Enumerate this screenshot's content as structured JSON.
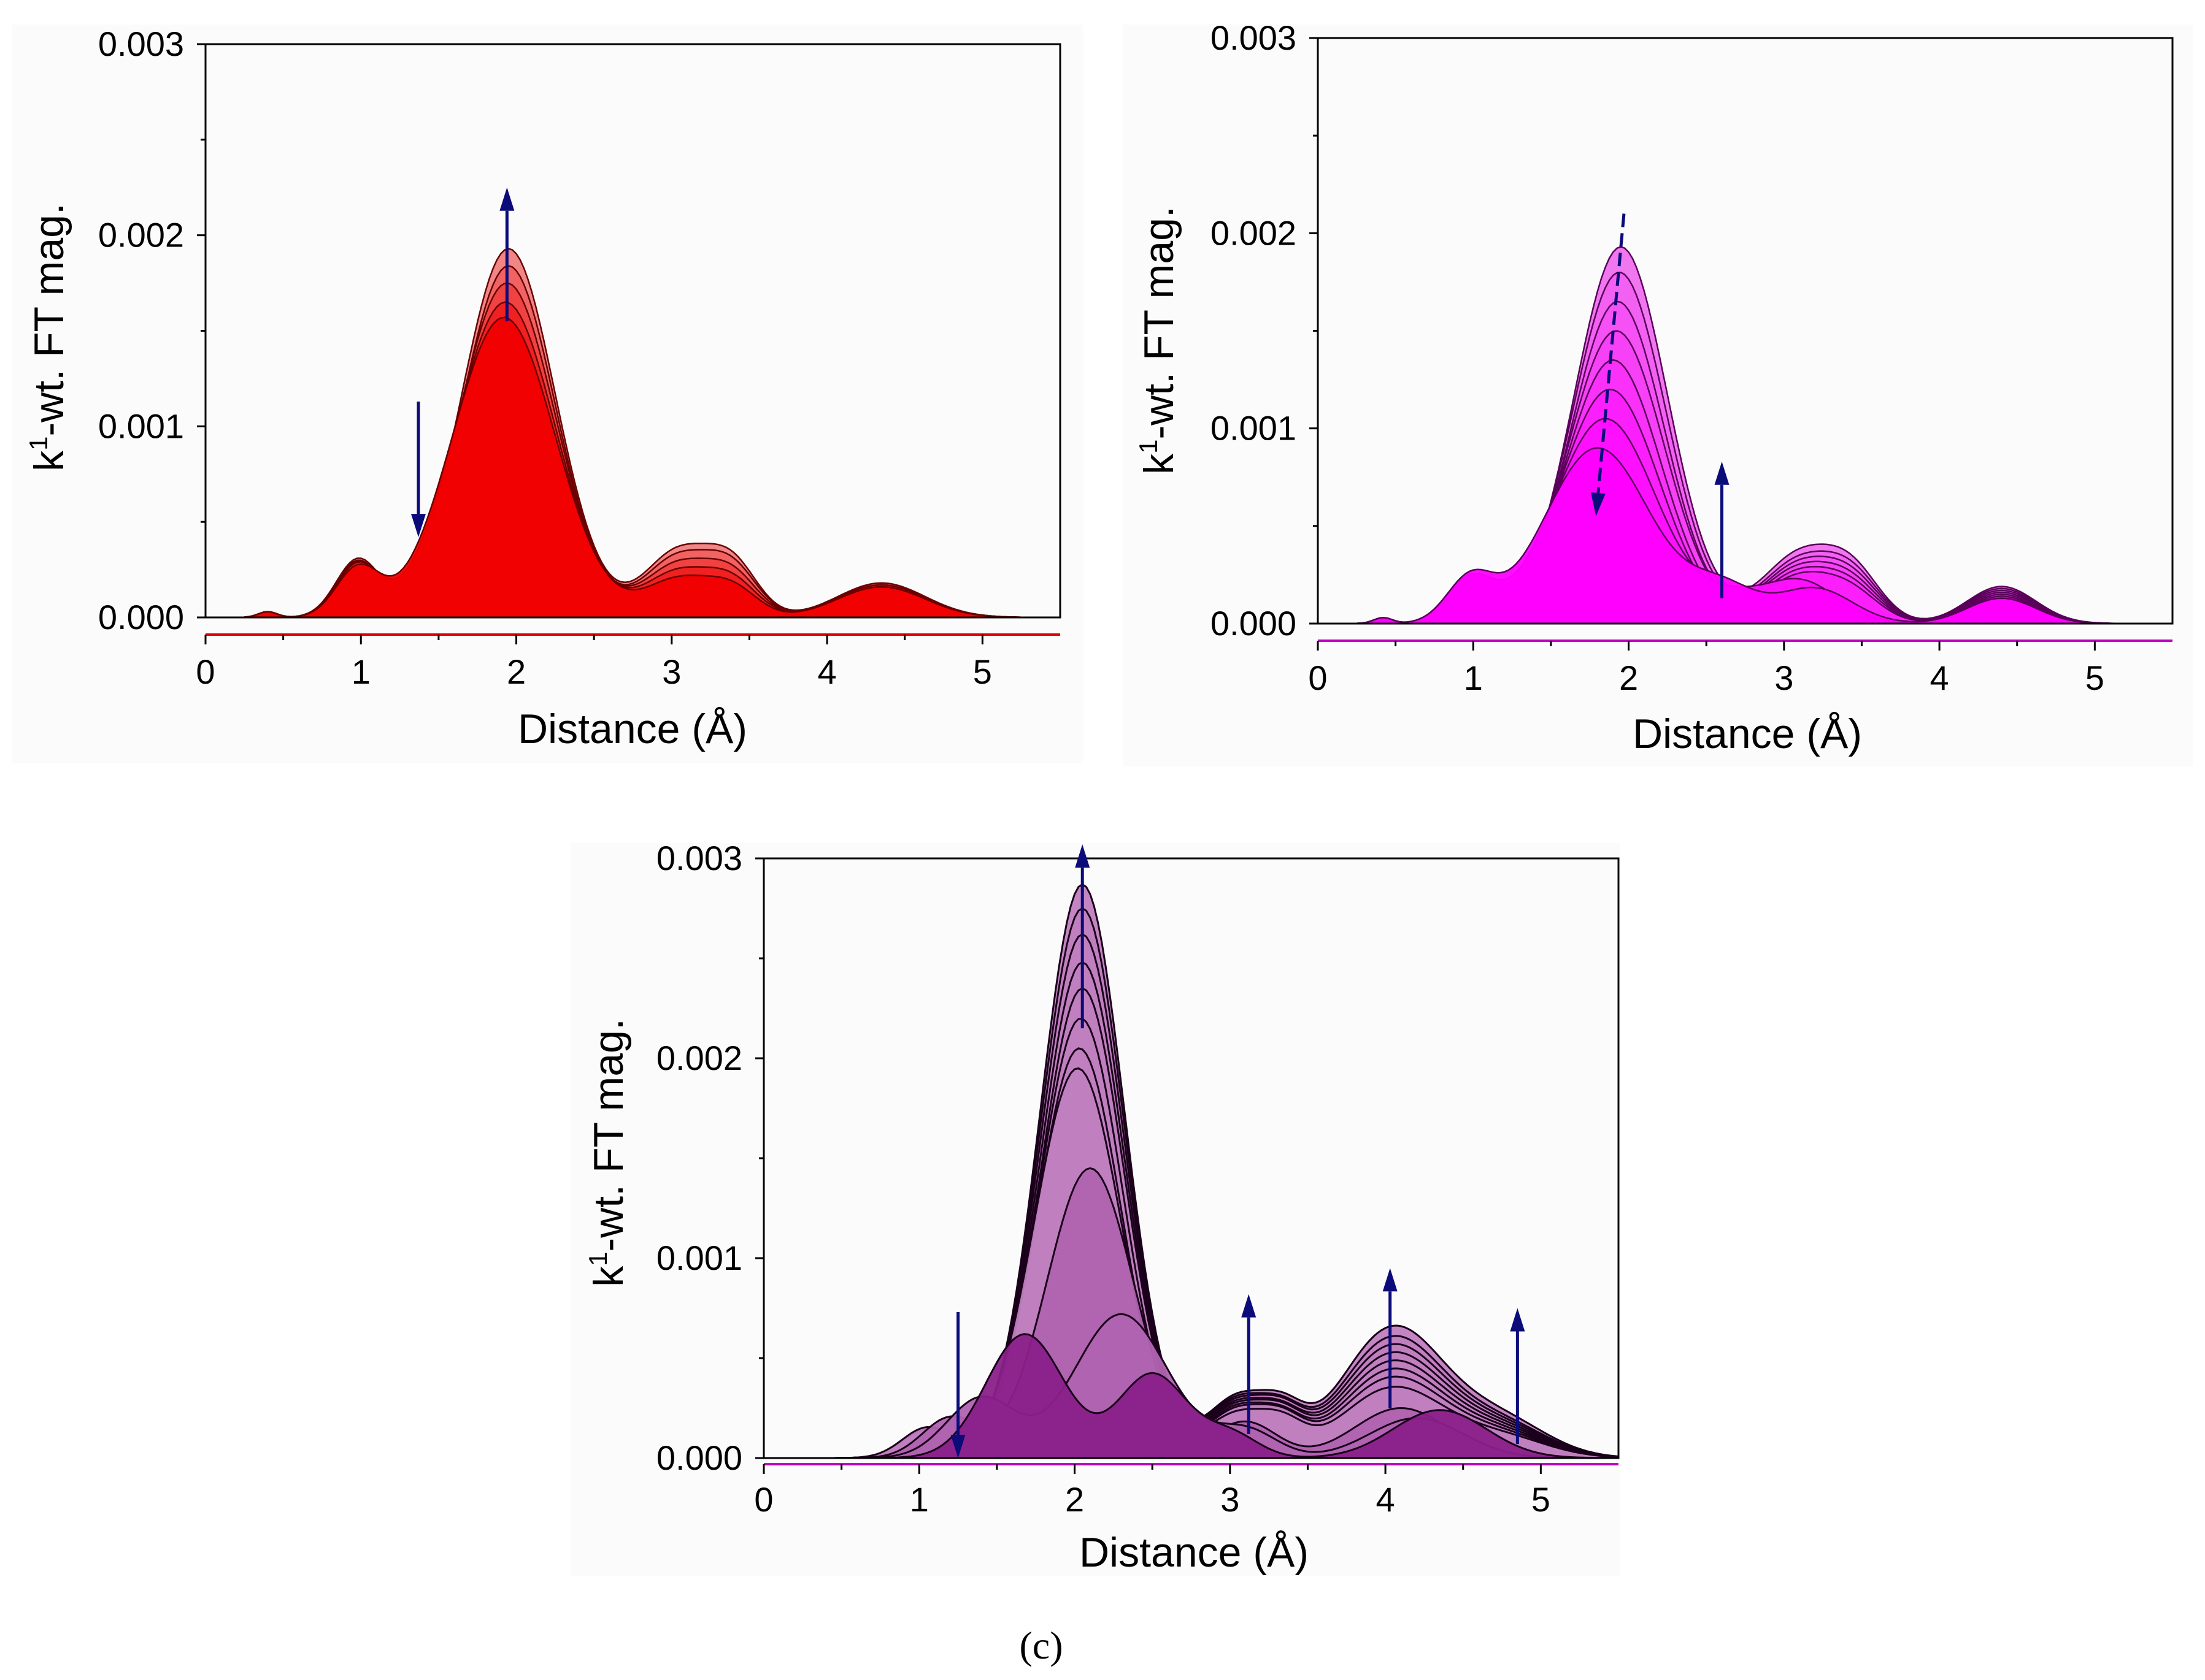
{
  "figure": {
    "caption": "(c)"
  },
  "chart_data": [
    {
      "type": "area",
      "panel": "a",
      "title": "",
      "xlabel": "Distance (Å)",
      "ylabel_sup": "1",
      "ylabel_prefix": "k",
      "ylabel_rest": "-wt. FT mag.",
      "xlim": [
        0,
        5.5
      ],
      "ylim": [
        0,
        0.003
      ],
      "xticks": [
        0,
        1,
        2,
        3,
        4,
        5
      ],
      "xtick_labels": [
        "0",
        "1",
        "2",
        "3",
        "4",
        "5"
      ],
      "yticks": [
        0,
        0.001,
        0.002,
        0.003
      ],
      "ytick_labels": [
        "0.000",
        "0.001",
        "0.002",
        "0.003"
      ],
      "colors": {
        "fill": "#f00000",
        "fill_light": "#f08080",
        "line": "#6a0000",
        "axis_line": "#e00000"
      },
      "series": [
        {
          "name": "curve-1",
          "peaks": [
            [
              0.4,
              3e-05,
              0.06
            ],
            [
              0.98,
              0.0003,
              0.14
            ],
            [
              1.95,
              0.00193,
              0.3
            ],
            [
              3.05,
              0.00035,
              0.22
            ],
            [
              3.4,
              0.00024,
              0.16
            ],
            [
              4.35,
              0.00018,
              0.28
            ]
          ]
        },
        {
          "name": "curve-2",
          "peaks": [
            [
              0.4,
              3e-05,
              0.06
            ],
            [
              0.98,
              0.00029,
              0.14
            ],
            [
              1.95,
              0.00184,
              0.3
            ],
            [
              3.05,
              0.00032,
              0.22
            ],
            [
              3.4,
              0.00022,
              0.16
            ],
            [
              4.35,
              0.00018,
              0.28
            ]
          ]
        },
        {
          "name": "curve-3",
          "peaks": [
            [
              0.4,
              3e-05,
              0.06
            ],
            [
              0.98,
              0.00028,
              0.14
            ],
            [
              1.94,
              0.00175,
              0.31
            ],
            [
              3.05,
              0.00028,
              0.22
            ],
            [
              3.4,
              0.00019,
              0.16
            ],
            [
              4.35,
              0.00017,
              0.28
            ]
          ]
        },
        {
          "name": "curve-4",
          "peaks": [
            [
              0.4,
              3e-05,
              0.06
            ],
            [
              0.98,
              0.00027,
              0.14
            ],
            [
              1.93,
              0.00165,
              0.32
            ],
            [
              3.05,
              0.00024,
              0.22
            ],
            [
              3.4,
              0.00016,
              0.16
            ],
            [
              4.35,
              0.00017,
              0.28
            ]
          ]
        },
        {
          "name": "curve-5",
          "peaks": [
            [
              0.4,
              3e-05,
              0.06
            ],
            [
              0.98,
              0.00025,
              0.14
            ],
            [
              1.92,
              0.00157,
              0.33
            ],
            [
              3.05,
              0.0002,
              0.22
            ],
            [
              3.4,
              0.00013,
              0.16
            ],
            [
              4.35,
              0.00016,
              0.28
            ]
          ]
        }
      ],
      "arrows": [
        {
          "name": "peak-increase-arrow",
          "x": 1.94,
          "y_from": 0.00155,
          "y_to": 0.00225
        },
        {
          "name": "shoulder-decrease-arrow",
          "x": 1.37,
          "y_from": 0.00113,
          "y_to": 0.00042
        }
      ]
    },
    {
      "type": "area",
      "panel": "b",
      "title": "",
      "xlabel": "Distance (Å)",
      "ylabel_sup": "1",
      "ylabel_prefix": "k",
      "ylabel_rest": "-wt. FT mag.",
      "xlim": [
        0,
        5.5
      ],
      "ylim": [
        0,
        0.003
      ],
      "xticks": [
        0,
        1,
        2,
        3,
        4,
        5
      ],
      "xtick_labels": [
        "0",
        "1",
        "2",
        "3",
        "4",
        "5"
      ],
      "yticks": [
        0,
        0.001,
        0.002,
        0.003
      ],
      "ytick_labels": [
        "0.000",
        "0.001",
        "0.002",
        "0.003"
      ],
      "colors": {
        "fill": "#ff00ff",
        "fill_light": "#f070f0",
        "line": "#5a005a",
        "axis_line": "#c000c0"
      },
      "series": [
        {
          "name": "curve-1",
          "peaks": [
            [
              0.42,
              3e-05,
              0.06
            ],
            [
              0.98,
              0.0002,
              0.15
            ],
            [
              1.95,
              0.00193,
              0.3
            ],
            [
              3.1,
              0.00035,
              0.24
            ],
            [
              3.45,
              0.00022,
              0.18
            ],
            [
              4.4,
              0.00019,
              0.22
            ]
          ]
        },
        {
          "name": "curve-2",
          "peaks": [
            [
              0.42,
              3e-05,
              0.06
            ],
            [
              0.98,
              0.0002,
              0.15
            ],
            [
              1.94,
              0.0018,
              0.3
            ],
            [
              3.1,
              0.00032,
              0.24
            ],
            [
              3.45,
              0.0002,
              0.18
            ],
            [
              4.4,
              0.00018,
              0.22
            ]
          ]
        },
        {
          "name": "curve-3",
          "peaks": [
            [
              0.42,
              3e-05,
              0.06
            ],
            [
              0.98,
              0.0002,
              0.15
            ],
            [
              1.93,
              0.00165,
              0.3
            ],
            [
              3.1,
              0.0003,
              0.24
            ],
            [
              3.45,
              0.00018,
              0.18
            ],
            [
              4.4,
              0.00017,
              0.22
            ]
          ]
        },
        {
          "name": "curve-4",
          "peaks": [
            [
              0.42,
              3e-05,
              0.06
            ],
            [
              0.98,
              0.00021,
              0.15
            ],
            [
              1.92,
              0.0015,
              0.31
            ],
            [
              3.1,
              0.00028,
              0.24
            ],
            [
              3.45,
              0.00016,
              0.18
            ],
            [
              4.4,
              0.00016,
              0.22
            ]
          ]
        },
        {
          "name": "curve-5",
          "peaks": [
            [
              0.42,
              3e-05,
              0.06
            ],
            [
              0.98,
              0.00021,
              0.15
            ],
            [
              1.9,
              0.00135,
              0.31
            ],
            [
              3.1,
              0.00026,
              0.24
            ],
            [
              3.45,
              0.00014,
              0.18
            ],
            [
              4.4,
              0.00015,
              0.22
            ]
          ]
        },
        {
          "name": "curve-6",
          "peaks": [
            [
              0.42,
              3e-05,
              0.06
            ],
            [
              0.98,
              0.00022,
              0.15
            ],
            [
              1.88,
              0.0012,
              0.32
            ],
            [
              3.1,
              0.00024,
              0.24
            ],
            [
              3.45,
              0.00012,
              0.18
            ],
            [
              4.4,
              0.00014,
              0.22
            ]
          ]
        },
        {
          "name": "curve-7",
          "peaks": [
            [
              0.42,
              3e-05,
              0.06
            ],
            [
              0.98,
              0.00022,
              0.15
            ],
            [
              1.85,
              0.00105,
              0.33
            ],
            [
              2.65,
              0.0001,
              0.2
            ],
            [
              3.1,
              0.00022,
              0.24
            ],
            [
              4.4,
              0.00013,
              0.22
            ]
          ]
        },
        {
          "name": "curve-8",
          "peaks": [
            [
              0.42,
              3e-05,
              0.06
            ],
            [
              0.98,
              0.00022,
              0.15
            ],
            [
              1.8,
              0.0009,
              0.34
            ],
            [
              2.6,
              0.00018,
              0.22
            ],
            [
              3.2,
              0.00018,
              0.24
            ],
            [
              4.4,
              0.00013,
              0.22
            ]
          ]
        }
      ],
      "arrows": [
        {
          "name": "peak-decrease-arrow",
          "x_from": 1.97,
          "x_to": 1.79,
          "y_from": 0.0021,
          "y_to": 0.00055,
          "dashed": true
        },
        {
          "name": "shoulder-increase-arrow",
          "x": 2.6,
          "y_from": 0.00013,
          "y_to": 0.00083
        }
      ]
    },
    {
      "type": "area",
      "panel": "c",
      "title": "",
      "xlabel": "Distance (Å)",
      "ylabel_sup": "1",
      "ylabel_prefix": "k",
      "ylabel_rest": "-wt. FT mag.",
      "xlim": [
        0,
        5.5
      ],
      "ylim": [
        0,
        0.003
      ],
      "xticks": [
        0,
        1,
        2,
        3,
        4,
        5
      ],
      "xtick_labels": [
        "0",
        "1",
        "2",
        "3",
        "4",
        "5"
      ],
      "yticks": [
        0,
        0.001,
        0.002,
        0.003
      ],
      "ytick_labels": [
        "0.000",
        "0.001",
        "0.002",
        "0.003"
      ],
      "colors": {
        "fill": "#c080c0",
        "fill_dark": "#8a208a",
        "line": "#1a001a",
        "axis_line": "#c000c0"
      },
      "series": [
        {
          "name": "curve-1",
          "peaks": [
            [
              1.05,
              0.00012,
              0.16
            ],
            [
              2.05,
              0.00287,
              0.27
            ],
            [
              3.05,
              0.0003,
              0.2
            ],
            [
              3.35,
              0.00016,
              0.14
            ],
            [
              4.05,
              0.00065,
              0.33
            ],
            [
              4.75,
              0.00018,
              0.3
            ]
          ]
        },
        {
          "name": "curve-2",
          "peaks": [
            [
              1.05,
              0.00012,
              0.16
            ],
            [
              2.05,
              0.00275,
              0.27
            ],
            [
              3.05,
              0.00029,
              0.2
            ],
            [
              3.35,
              0.00015,
              0.14
            ],
            [
              4.05,
              0.0006,
              0.33
            ],
            [
              4.75,
              0.00016,
              0.3
            ]
          ]
        },
        {
          "name": "curve-3",
          "peaks": [
            [
              1.05,
              0.00012,
              0.16
            ],
            [
              2.05,
              0.00262,
              0.27
            ],
            [
              3.05,
              0.00028,
              0.2
            ],
            [
              3.35,
              0.00015,
              0.14
            ],
            [
              4.05,
              0.00056,
              0.33
            ],
            [
              4.75,
              0.00015,
              0.3
            ]
          ]
        },
        {
          "name": "curve-4",
          "peaks": [
            [
              1.05,
              0.00012,
              0.16
            ],
            [
              2.05,
              0.00248,
              0.27
            ],
            [
              3.05,
              0.00027,
              0.2
            ],
            [
              3.35,
              0.00014,
              0.14
            ],
            [
              4.05,
              0.00052,
              0.33
            ],
            [
              4.75,
              0.00014,
              0.3
            ]
          ]
        },
        {
          "name": "curve-5",
          "peaks": [
            [
              1.05,
              0.00013,
              0.16
            ],
            [
              2.05,
              0.00235,
              0.27
            ],
            [
              3.05,
              0.00026,
              0.2
            ],
            [
              3.35,
              0.00014,
              0.14
            ],
            [
              4.05,
              0.00048,
              0.33
            ],
            [
              4.75,
              0.00013,
              0.3
            ]
          ]
        },
        {
          "name": "curve-6",
          "peaks": [
            [
              1.05,
              0.00013,
              0.16
            ],
            [
              2.04,
              0.0022,
              0.27
            ],
            [
              3.05,
              0.00025,
              0.2
            ],
            [
              3.35,
              0.00013,
              0.14
            ],
            [
              4.05,
              0.00044,
              0.33
            ],
            [
              4.75,
              0.00012,
              0.3
            ]
          ]
        },
        {
          "name": "curve-7",
          "peaks": [
            [
              1.05,
              0.00014,
              0.16
            ],
            [
              2.03,
              0.00205,
              0.27
            ],
            [
              3.05,
              0.00024,
              0.2
            ],
            [
              3.35,
              0.00013,
              0.14
            ],
            [
              4.05,
              0.0004,
              0.33
            ],
            [
              4.75,
              0.00011,
              0.3
            ]
          ]
        },
        {
          "name": "curve-8",
          "peaks": [
            [
              1.05,
              0.00015,
              0.16
            ],
            [
              2.02,
              0.00195,
              0.28
            ],
            [
              3.05,
              0.00022,
              0.2
            ],
            [
              3.35,
              0.00012,
              0.14
            ],
            [
              4.05,
              0.00035,
              0.33
            ],
            [
              4.75,
              0.0001,
              0.3
            ]
          ]
        },
        {
          "name": "curve-9",
          "peaks": [
            [
              1.2,
              0.0002,
              0.18
            ],
            [
              2.1,
              0.00145,
              0.28
            ],
            [
              3.1,
              0.00018,
              0.2
            ],
            [
              4.1,
              0.00025,
              0.3
            ]
          ]
        },
        {
          "name": "curve-10",
          "peaks": [
            [
              1.4,
              0.0003,
              0.22
            ],
            [
              2.3,
              0.00072,
              0.3
            ],
            [
              3.1,
              0.00014,
              0.2
            ],
            [
              4.2,
              0.0002,
              0.3
            ]
          ]
        },
        {
          "name": "curve-11",
          "peaks": [
            [
              1.68,
              0.00062,
              0.25
            ],
            [
              2.5,
              0.00042,
              0.22
            ],
            [
              3.0,
              0.00012,
              0.18
            ],
            [
              4.35,
              0.00024,
              0.3
            ]
          ]
        }
      ],
      "arrows": [
        {
          "name": "shoulder-decrease-arrow",
          "x": 1.25,
          "y_from": 0.00073,
          "y_to": 0.0
        },
        {
          "name": "main-peak-increase-arrow",
          "x": 2.05,
          "y_from": 0.00215,
          "y_to": 0.00307
        },
        {
          "name": "peak-3a-increase-arrow",
          "x": 3.12,
          "y_from": 0.00012,
          "y_to": 0.00082
        },
        {
          "name": "peak-4a-increase-arrow",
          "x": 4.03,
          "y_from": 0.00025,
          "y_to": 0.00095
        },
        {
          "name": "peak-4.8a-increase-arrow",
          "x": 4.85,
          "y_from": 7e-05,
          "y_to": 0.00075
        }
      ]
    }
  ]
}
